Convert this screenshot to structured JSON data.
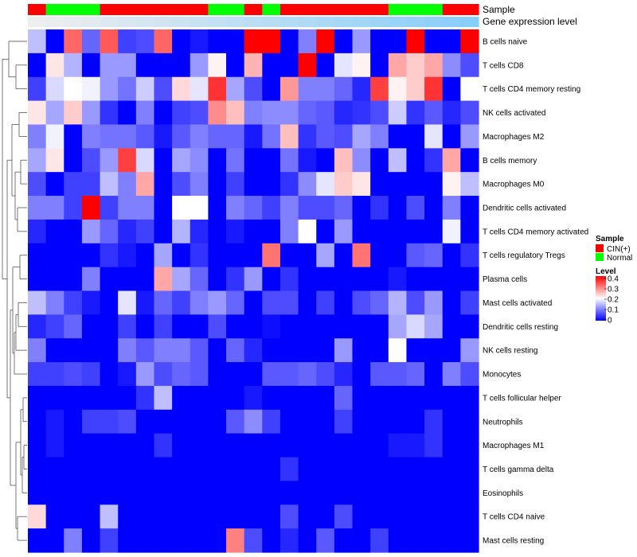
{
  "chart_data": {
    "type": "heatmap",
    "title": "",
    "annotation_tracks": [
      {
        "name": "Sample",
        "values": [
          "CIN(+)",
          "Normal",
          "Normal",
          "Normal",
          "CIN(+)",
          "CIN(+)",
          "CIN(+)",
          "CIN(+)",
          "CIN(+)",
          "CIN(+)",
          "Normal",
          "Normal",
          "CIN(+)",
          "Normal",
          "CIN(+)",
          "CIN(+)",
          "CIN(+)",
          "CIN(+)",
          "CIN(+)",
          "CIN(+)",
          "Normal",
          "Normal",
          "Normal",
          "CIN(+)",
          "CIN(+)"
        ]
      },
      {
        "name": "Gene expression level",
        "values": [
          0.0,
          0.04,
          0.08,
          0.12,
          0.17,
          0.21,
          0.25,
          0.29,
          0.33,
          0.37,
          0.42,
          0.46,
          0.5,
          0.54,
          0.58,
          0.62,
          0.67,
          0.71,
          0.75,
          0.79,
          0.83,
          0.87,
          0.92,
          0.96,
          1.0
        ]
      }
    ],
    "rows": [
      "B cells naive",
      "T cells CD8",
      "T cells CD4 memory resting",
      "NK cells activated",
      "Macrophages M2",
      "B cells memory",
      "Macrophages M0",
      "Dendritic cells activated",
      "T cells CD4 memory activated",
      "T cells regulatory  Tregs",
      "Plasma cells",
      "Mast cells activated",
      "Dendritic cells resting",
      "NK cells resting",
      "Monocytes",
      "T cells follicular helper",
      "Neutrophils",
      "Macrophages M1",
      "T cells gamma delta",
      "Eosinophils",
      "T cells CD4 naive",
      "Mast cells resting"
    ],
    "columns": 25,
    "values": [
      [
        0.15,
        0.0,
        0.32,
        0.08,
        0.33,
        0.05,
        0.06,
        0.32,
        0.0,
        0.02,
        0.0,
        0.0,
        0.4,
        0.4,
        0.0,
        0.1,
        0.4,
        0.0,
        0.12,
        0.0,
        0.0,
        0.4,
        0.0,
        0.0,
        0.4
      ],
      [
        0.0,
        0.22,
        0.14,
        0.0,
        0.12,
        0.12,
        0.0,
        0.0,
        0.0,
        0.12,
        0.21,
        0.0,
        0.26,
        0.0,
        0.0,
        0.4,
        0.0,
        0.18,
        0.21,
        0.0,
        0.27,
        0.24,
        0.27,
        0.11,
        0.06
      ],
      [
        0.05,
        0.17,
        0.2,
        0.19,
        0.12,
        0.09,
        0.16,
        0.06,
        0.23,
        0.18,
        0.36,
        0.13,
        0.06,
        0.0,
        0.28,
        0.1,
        0.1,
        0.08,
        0.03,
        0.35,
        0.21,
        0.24,
        0.36,
        0.0,
        0.2
      ],
      [
        0.22,
        0.13,
        0.24,
        0.12,
        0.04,
        0.0,
        0.1,
        0.0,
        0.05,
        0.06,
        0.29,
        0.25,
        0.1,
        0.11,
        0.11,
        0.08,
        0.07,
        0.03,
        0.04,
        0.06,
        0.16,
        0.04,
        0.07,
        0.03,
        0.06
      ],
      [
        0.1,
        0.19,
        0.0,
        0.1,
        0.09,
        0.09,
        0.07,
        0.02,
        0.07,
        0.1,
        0.08,
        0.08,
        0.02,
        0.09,
        0.25,
        0.04,
        0.07,
        0.06,
        0.13,
        0.1,
        0.0,
        0.0,
        0.18,
        0.0,
        0.12
      ],
      [
        0.13,
        0.22,
        0.0,
        0.06,
        0.12,
        0.35,
        0.17,
        0.0,
        0.13,
        0.11,
        0.0,
        0.09,
        0.0,
        0.0,
        0.09,
        0.02,
        0.0,
        0.25,
        0.11,
        0.0,
        0.15,
        0.0,
        0.04,
        0.27,
        0.0
      ],
      [
        0.06,
        0.0,
        0.05,
        0.05,
        0.15,
        0.1,
        0.27,
        0.0,
        0.06,
        0.1,
        0.0,
        0.05,
        0.0,
        0.0,
        0.04,
        0.11,
        0.18,
        0.24,
        0.22,
        0.0,
        0.0,
        0.0,
        0.0,
        0.21,
        0.15
      ],
      [
        0.1,
        0.1,
        0.05,
        0.4,
        0.05,
        0.1,
        0.1,
        0.0,
        0.2,
        0.2,
        0.0,
        0.1,
        0.08,
        0.05,
        0.1,
        0.06,
        0.06,
        0.08,
        0.0,
        0.04,
        0.0,
        0.06,
        0.0,
        0.1,
        0.0
      ],
      [
        0.03,
        0.0,
        0.0,
        0.12,
        0.08,
        0.03,
        0.05,
        0.0,
        0.14,
        0.03,
        0.0,
        0.02,
        0.0,
        0.0,
        0.1,
        0.2,
        0.0,
        0.12,
        0.0,
        0.0,
        0.0,
        0.0,
        0.0,
        0.19,
        0.0
      ],
      [
        0.0,
        0.0,
        0.0,
        0.0,
        0.04,
        0.02,
        0.0,
        0.13,
        0.0,
        0.04,
        0.0,
        0.0,
        0.0,
        0.31,
        0.0,
        0.0,
        0.13,
        0.0,
        0.31,
        0.0,
        0.0,
        0.07,
        0.08,
        0.0,
        0.04
      ],
      [
        0.0,
        0.0,
        0.0,
        0.1,
        0.0,
        0.0,
        0.0,
        0.27,
        0.13,
        0.08,
        0.0,
        0.04,
        0.12,
        0.0,
        0.04,
        0.0,
        0.0,
        0.0,
        0.0,
        0.0,
        0.02,
        0.0,
        0.0,
        0.0,
        0.0
      ],
      [
        0.15,
        0.1,
        0.05,
        0.02,
        0.0,
        0.18,
        0.02,
        0.08,
        0.05,
        0.1,
        0.12,
        0.08,
        0.0,
        0.06,
        0.06,
        0.0,
        0.05,
        0.0,
        0.06,
        0.08,
        0.14,
        0.06,
        0.12,
        0.0,
        0.05
      ],
      [
        0.03,
        0.05,
        0.08,
        0.0,
        0.0,
        0.05,
        0.0,
        0.05,
        0.0,
        0.0,
        0.06,
        0.0,
        0.0,
        0.01,
        0.0,
        0.0,
        0.0,
        0.0,
        0.0,
        0.0,
        0.13,
        0.17,
        0.13,
        0.0,
        0.0
      ],
      [
        0.1,
        0.0,
        0.0,
        0.0,
        0.0,
        0.1,
        0.07,
        0.1,
        0.1,
        0.07,
        0.0,
        0.08,
        0.03,
        0.0,
        0.0,
        0.0,
        0.0,
        0.12,
        0.0,
        0.0,
        0.2,
        0.0,
        0.0,
        0.0,
        0.12
      ],
      [
        0.05,
        0.05,
        0.06,
        0.05,
        0.0,
        0.02,
        0.12,
        0.06,
        0.08,
        0.07,
        0.0,
        0.0,
        0.0,
        0.07,
        0.07,
        0.08,
        0.06,
        0.03,
        0.0,
        0.07,
        0.07,
        0.08,
        0.0,
        0.1,
        0.06
      ],
      [
        0.0,
        0.0,
        0.0,
        0.0,
        0.0,
        0.0,
        0.04,
        0.15,
        0.0,
        0.0,
        0.0,
        0.0,
        0.02,
        0.0,
        0.0,
        0.0,
        0.0,
        0.08,
        0.0,
        0.0,
        0.0,
        0.0,
        0.0,
        0.0,
        0.0
      ],
      [
        0.0,
        0.02,
        0.0,
        0.05,
        0.05,
        0.06,
        0.0,
        0.0,
        0.0,
        0.0,
        0.0,
        0.07,
        0.11,
        0.05,
        0.0,
        0.0,
        0.0,
        0.05,
        0.0,
        0.0,
        0.0,
        0.0,
        0.04,
        0.0,
        0.0
      ],
      [
        0.0,
        0.02,
        0.0,
        0.0,
        0.0,
        0.0,
        0.0,
        0.04,
        0.0,
        0.0,
        0.0,
        0.0,
        0.0,
        0.0,
        0.0,
        0.0,
        0.0,
        0.0,
        0.0,
        0.0,
        0.02,
        0.02,
        0.04,
        0.0,
        0.0
      ],
      [
        0.0,
        0.0,
        0.0,
        0.0,
        0.0,
        0.0,
        0.0,
        0.0,
        0.0,
        0.0,
        0.0,
        0.0,
        0.0,
        0.0,
        0.04,
        0.0,
        0.0,
        0.0,
        0.0,
        0.0,
        0.0,
        0.0,
        0.0,
        0.0,
        0.0
      ],
      [
        0.0,
        0.0,
        0.0,
        0.0,
        0.0,
        0.0,
        0.0,
        0.0,
        0.0,
        0.0,
        0.0,
        0.0,
        0.0,
        0.0,
        0.0,
        0.0,
        0.0,
        0.0,
        0.0,
        0.0,
        0.0,
        0.0,
        0.0,
        0.0,
        0.0
      ],
      [
        0.23,
        0.0,
        0.0,
        0.0,
        0.15,
        0.0,
        0.0,
        0.0,
        0.0,
        0.0,
        0.0,
        0.0,
        0.0,
        0.0,
        0.06,
        0.0,
        0.0,
        0.06,
        0.0,
        0.0,
        0.0,
        0.0,
        0.0,
        0.0,
        0.0
      ],
      [
        0.0,
        0.0,
        0.1,
        0.0,
        0.05,
        0.0,
        0.0,
        0.0,
        0.0,
        0.0,
        0.0,
        0.3,
        0.06,
        0.0,
        0.03,
        0.0,
        0.07,
        0.0,
        0.0,
        0.05,
        0.0,
        0.0,
        0.0,
        0.0,
        0.0
      ]
    ],
    "color_scale": {
      "min": 0,
      "max": 0.4,
      "low": "#0000ff",
      "mid": "#ffffff",
      "high": "#ff0000"
    },
    "legend": {
      "sample_title": "Sample",
      "sample_entries": [
        {
          "label": "CIN(+)",
          "color": "#ff0000"
        },
        {
          "label": "Normal",
          "color": "#00ff00"
        }
      ],
      "level_title": "Level",
      "level_ticks": [
        "0.4",
        "0.3",
        "0.2",
        "0.1",
        "0"
      ],
      "placement": "right"
    },
    "dendrogram": "rows"
  }
}
